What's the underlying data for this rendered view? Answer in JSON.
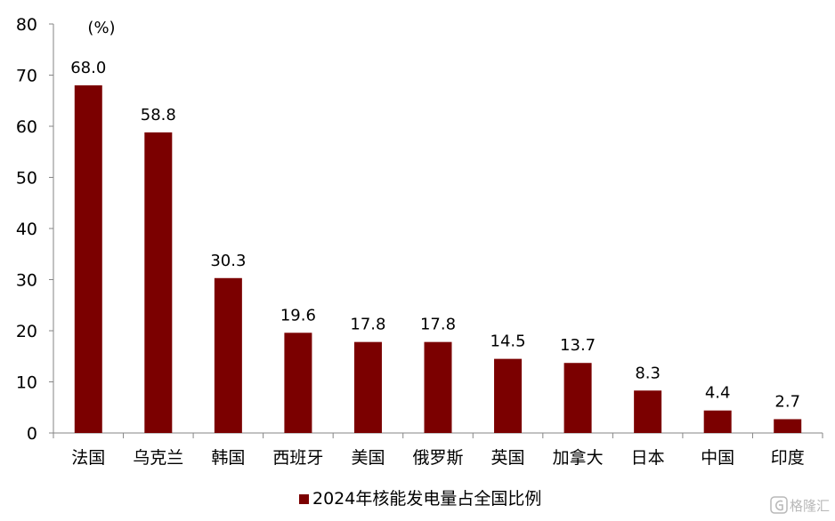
{
  "chart_data": {
    "type": "bar",
    "categories": [
      "法国",
      "乌克兰",
      "韩国",
      "西班牙",
      "美国",
      "俄罗斯",
      "英国",
      "加拿大",
      "日本",
      "中国",
      "印度"
    ],
    "series": [
      {
        "name": "2024年核能发电量占全国比例",
        "values": [
          68.0,
          58.8,
          30.3,
          19.6,
          17.8,
          17.8,
          14.5,
          13.7,
          8.3,
          4.4,
          2.7
        ],
        "color": "#7b0000"
      }
    ],
    "y_unit": "(%)",
    "ylim": [
      0,
      80
    ],
    "yticks": [
      0,
      10,
      20,
      30,
      40,
      50,
      60,
      70,
      80
    ],
    "grid": false,
    "legend_position": "bottom"
  },
  "watermark": {
    "text": "格隆汇",
    "icon": "g-logo-icon",
    "color": "#b9b9b9"
  }
}
